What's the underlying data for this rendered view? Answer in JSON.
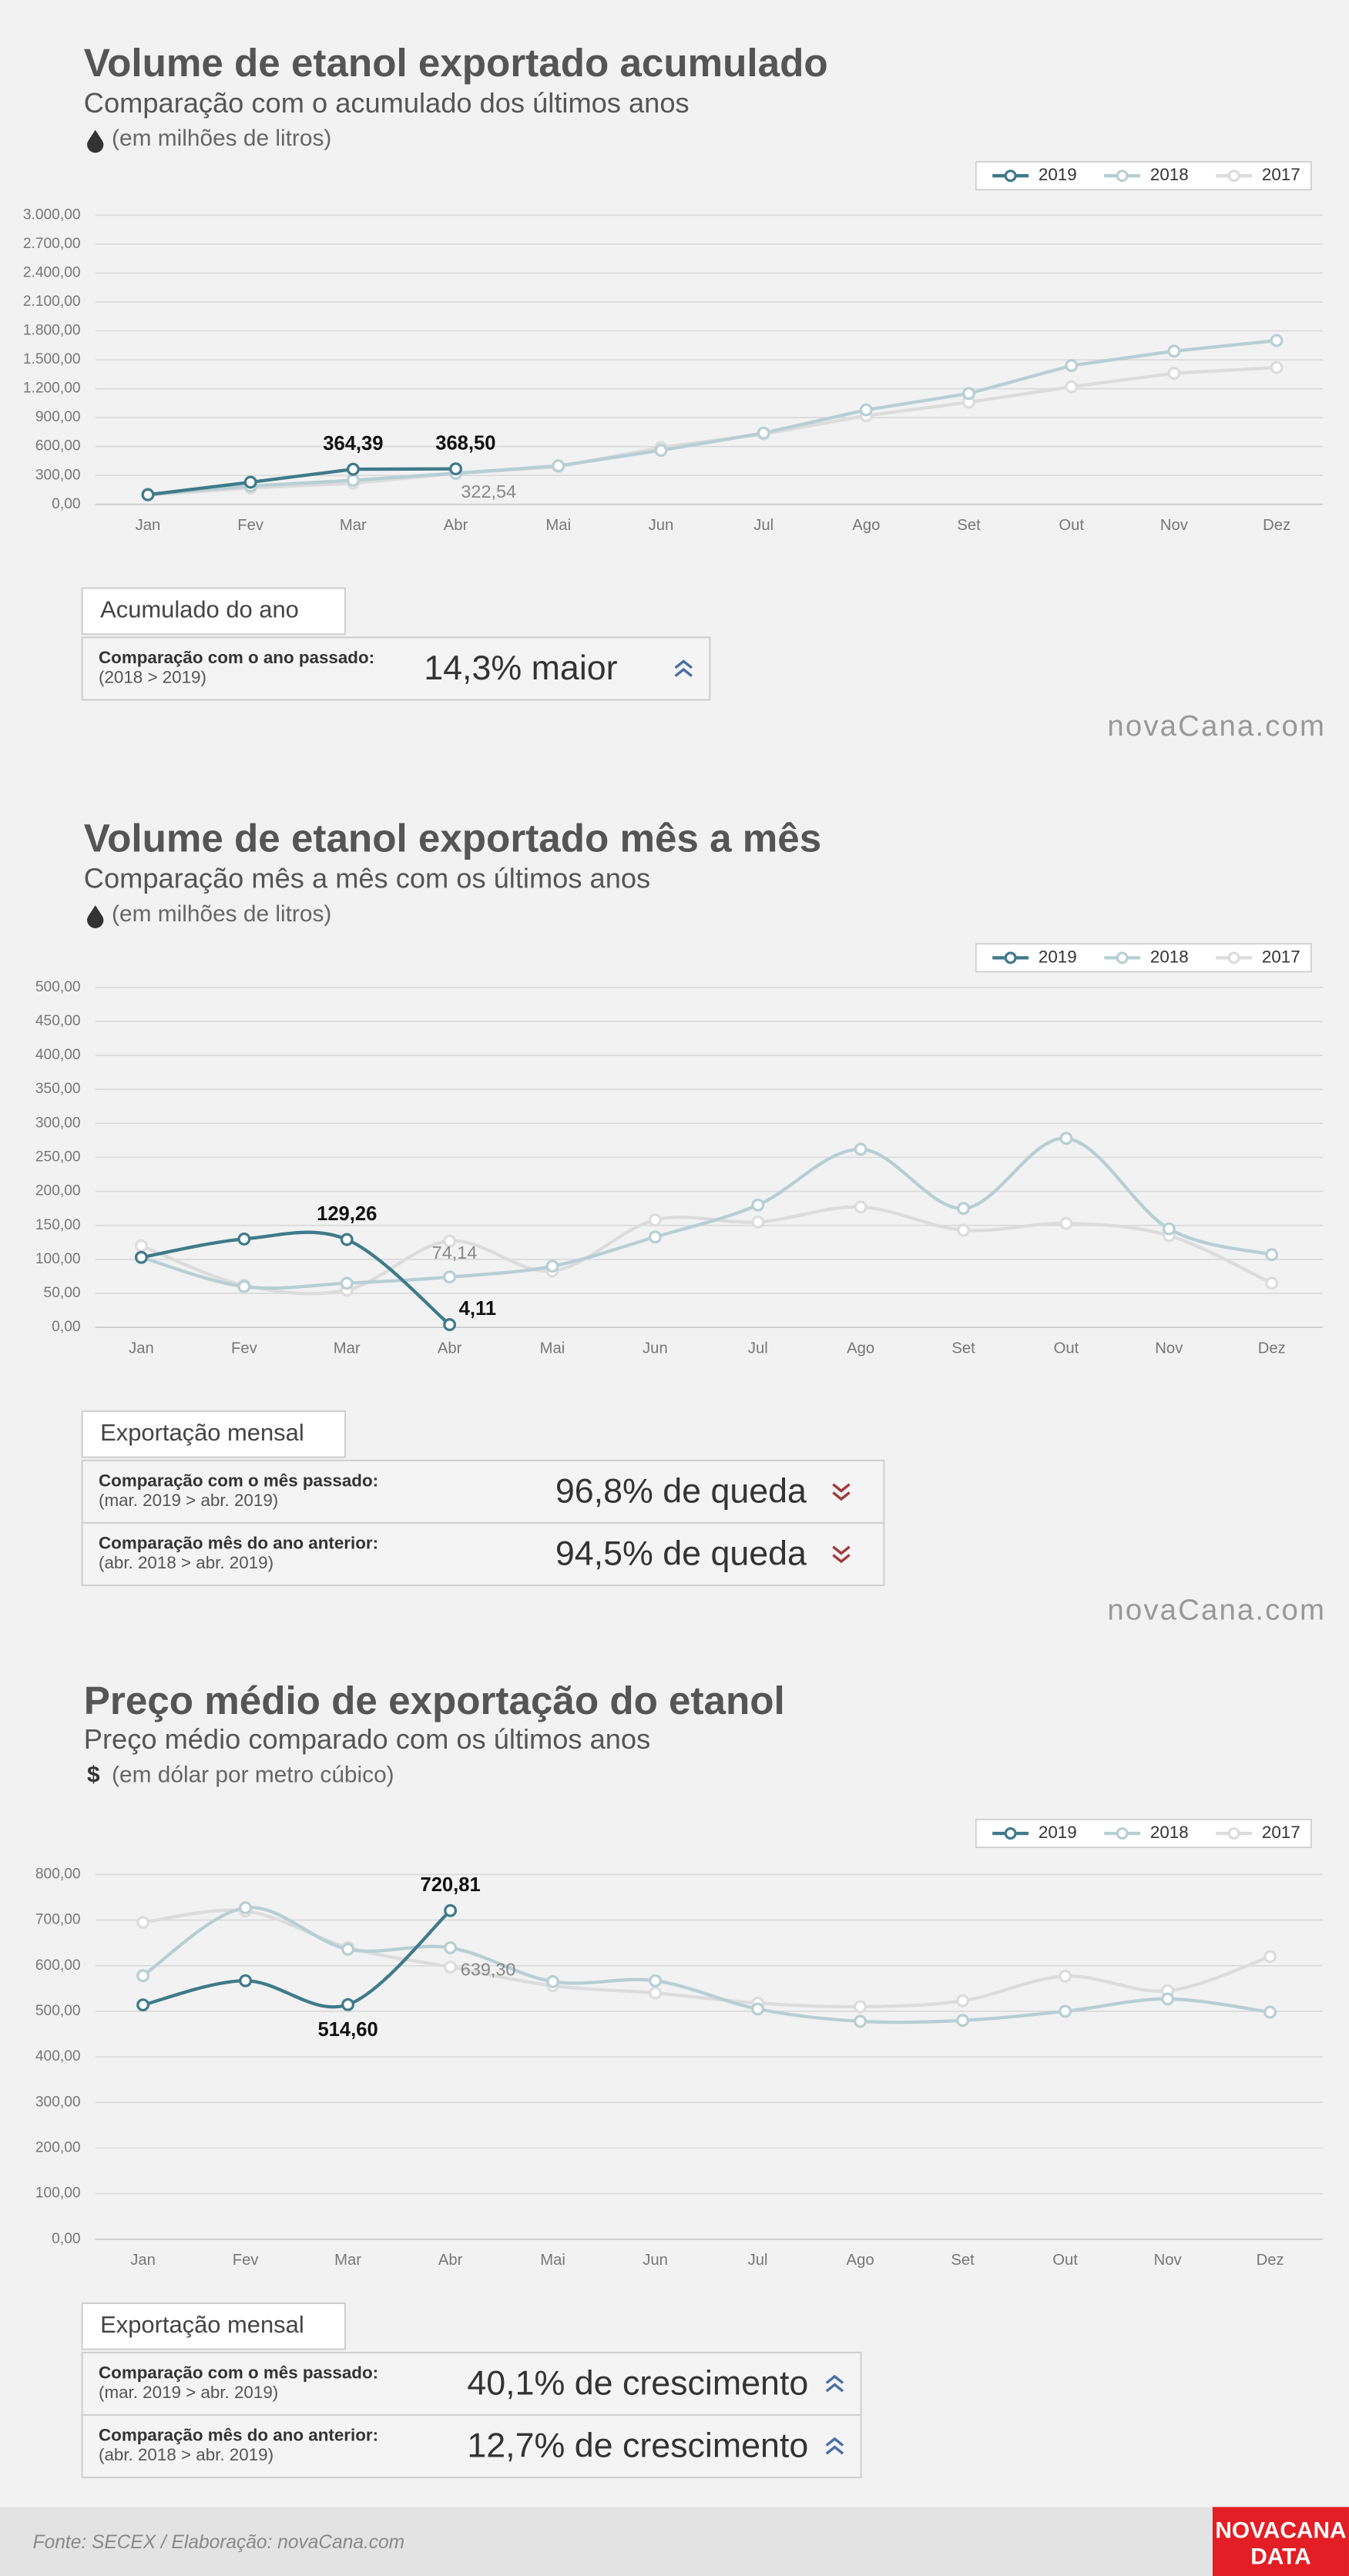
{
  "chart_data": [
    {
      "type": "line",
      "smooth": false,
      "title": "Volume de etanol exportado acumulado",
      "subtitle": "Comparação com o acumulado dos últimos anos",
      "unit_label": "(em milhões de litros)",
      "categories": [
        "Jan",
        "Fev",
        "Mar",
        "Abr",
        "Mai",
        "Jun",
        "Jul",
        "Ago",
        "Set",
        "Out",
        "Nov",
        "Dez"
      ],
      "series": [
        {
          "name": "2019",
          "color": "#3f7a8a",
          "values": [
            100,
            230,
            364.39,
            368.5,
            null,
            null,
            null,
            null,
            null,
            null,
            null,
            null
          ],
          "value_labels": [
            null,
            null,
            "364,39",
            "368,50",
            null,
            null,
            null,
            null,
            null,
            null,
            null,
            null
          ]
        },
        {
          "name": "2018",
          "color": "#b7cfd4",
          "values": [
            105,
            190,
            250,
            322.54,
            400,
            560,
            740,
            980,
            1150,
            1440,
            1590,
            1700
          ],
          "value_labels": [
            null,
            null,
            null,
            "322,54",
            null,
            null,
            null,
            null,
            null,
            null,
            null,
            null
          ]
        },
        {
          "name": "2017",
          "color": "#dcdcdc",
          "values": [
            95,
            170,
            220,
            320,
            390,
            590,
            730,
            920,
            1060,
            1220,
            1360,
            1420
          ]
        }
      ],
      "ylim": [
        0,
        3000
      ],
      "yticks": [
        {
          "value": 0,
          "label": "0,00"
        },
        {
          "value": 300,
          "label": "300,00"
        },
        {
          "value": 600,
          "label": "600,00"
        },
        {
          "value": 900,
          "label": "900,00"
        },
        {
          "value": 1200,
          "label": "1.200,00"
        },
        {
          "value": 1500,
          "label": "1.500,00"
        },
        {
          "value": 1800,
          "label": "1.800,00"
        },
        {
          "value": 2100,
          "label": "2.100,00"
        },
        {
          "value": 2400,
          "label": "2.400,00"
        },
        {
          "value": 2700,
          "label": "2.700,00"
        },
        {
          "value": 3000,
          "label": "3.000,00"
        }
      ],
      "grid": true,
      "legend": "top-right"
    },
    {
      "type": "line",
      "smooth": true,
      "title": "Volume de etanol exportado mês a mês",
      "subtitle": "Comparação mês a mês com os últimos anos",
      "unit_label": "(em milhões de litros)",
      "categories": [
        "Jan",
        "Fev",
        "Mar",
        "Abr",
        "Mai",
        "Jun",
        "Jul",
        "Ago",
        "Set",
        "Out",
        "Nov",
        "Dez"
      ],
      "series": [
        {
          "name": "2019",
          "color": "#3f7a8a",
          "values": [
            103,
            130,
            129.26,
            4.11,
            null,
            null,
            null,
            null,
            null,
            null,
            null,
            null
          ],
          "value_labels": [
            null,
            null,
            "129,26",
            "4,11",
            null,
            null,
            null,
            null,
            null,
            null,
            null,
            null
          ]
        },
        {
          "name": "2018",
          "color": "#b7cfd4",
          "values": [
            103,
            60,
            65,
            74.14,
            90,
            133,
            180,
            262,
            175,
            278,
            145,
            107
          ],
          "value_labels": [
            null,
            null,
            null,
            "74,14",
            null,
            null,
            null,
            null,
            null,
            null,
            null,
            null
          ]
        },
        {
          "name": "2017",
          "color": "#dcdcdc",
          "values": [
            120,
            62,
            55,
            127,
            83,
            158,
            155,
            177,
            143,
            153,
            135,
            65
          ]
        }
      ],
      "ylim": [
        0,
        500
      ],
      "yticks": [
        {
          "value": 0,
          "label": "0,00"
        },
        {
          "value": 50,
          "label": "50,00"
        },
        {
          "value": 100,
          "label": "100,00"
        },
        {
          "value": 150,
          "label": "150,00"
        },
        {
          "value": 200,
          "label": "200,00"
        },
        {
          "value": 250,
          "label": "250,00"
        },
        {
          "value": 300,
          "label": "300,00"
        },
        {
          "value": 350,
          "label": "350,00"
        },
        {
          "value": 400,
          "label": "400,00"
        },
        {
          "value": 450,
          "label": "450,00"
        },
        {
          "value": 500,
          "label": "500,00"
        }
      ],
      "grid": true,
      "legend": "top-right"
    },
    {
      "type": "line",
      "smooth": true,
      "title": "Preço médio de exportação do etanol",
      "subtitle": "Preço médio comparado com os últimos anos",
      "unit_symbol": "$",
      "unit_label": "(em dólar por metro cúbico)",
      "categories": [
        "Jan",
        "Fev",
        "Mar",
        "Abr",
        "Mai",
        "Jun",
        "Jul",
        "Ago",
        "Set",
        "Out",
        "Nov",
        "Dez"
      ],
      "series": [
        {
          "name": "2019",
          "color": "#3f7a8a",
          "values": [
            514,
            567,
            514.6,
            720.81,
            null,
            null,
            null,
            null,
            null,
            null,
            null,
            null
          ],
          "value_labels": [
            null,
            null,
            "514,60",
            "720,81",
            null,
            null,
            null,
            null,
            null,
            null,
            null,
            null
          ]
        },
        {
          "name": "2018",
          "color": "#b7cfd4",
          "values": [
            578,
            727,
            636,
            639.3,
            565,
            567,
            505,
            478,
            480,
            500,
            527,
            498
          ],
          "value_labels": [
            null,
            null,
            null,
            "639,30",
            null,
            null,
            null,
            null,
            null,
            null,
            null,
            null
          ]
        },
        {
          "name": "2017",
          "color": "#dcdcdc",
          "values": [
            695,
            720,
            640,
            597,
            556,
            540,
            518,
            510,
            523,
            577,
            545,
            620
          ]
        }
      ],
      "ylim": [
        0,
        800
      ],
      "yticks": [
        {
          "value": 0,
          "label": "0,00"
        },
        {
          "value": 100,
          "label": "100,00"
        },
        {
          "value": 200,
          "label": "200,00"
        },
        {
          "value": 300,
          "label": "300,00"
        },
        {
          "value": 400,
          "label": "400,00"
        },
        {
          "value": 500,
          "label": "500,00"
        },
        {
          "value": 600,
          "label": "600,00"
        },
        {
          "value": 700,
          "label": "700,00"
        },
        {
          "value": 800,
          "label": "800,00"
        }
      ],
      "grid": true,
      "legend": "top-right"
    }
  ],
  "panels": [
    {
      "heading": "Acumulado do ano",
      "rows": [
        {
          "label": "Comparação com o ano passado:",
          "detail": "(2018 > 2019)",
          "value": "14,3% maior"
        }
      ]
    },
    {
      "heading": "Exportação mensal",
      "rows": [
        {
          "label": "Comparação com o mês passado:",
          "detail": "(mar. 2019 > abr. 2019)",
          "value": "96,8% de queda"
        },
        {
          "label": "Comparação mês do ano anterior:",
          "detail": "(abr. 2018 > abr. 2019)",
          "value": "94,5% de queda"
        }
      ]
    },
    {
      "heading": "Exportação mensal",
      "rows": [
        {
          "label": "Comparação com o mês passado:",
          "detail": "(mar. 2019 > abr. 2019)",
          "value": "40,1% de crescimento"
        },
        {
          "label": "Comparação mês do ano anterior:",
          "detail": "(abr. 2018 > abr. 2019)",
          "value": "12,7% de crescimento"
        }
      ]
    }
  ],
  "brand": "novaCana.com",
  "footer": {
    "source": "Fonte: SECEX  / Elaboração: novaCana.com",
    "logo_top": "NOVACANA",
    "logo_bottom": "DATA"
  }
}
